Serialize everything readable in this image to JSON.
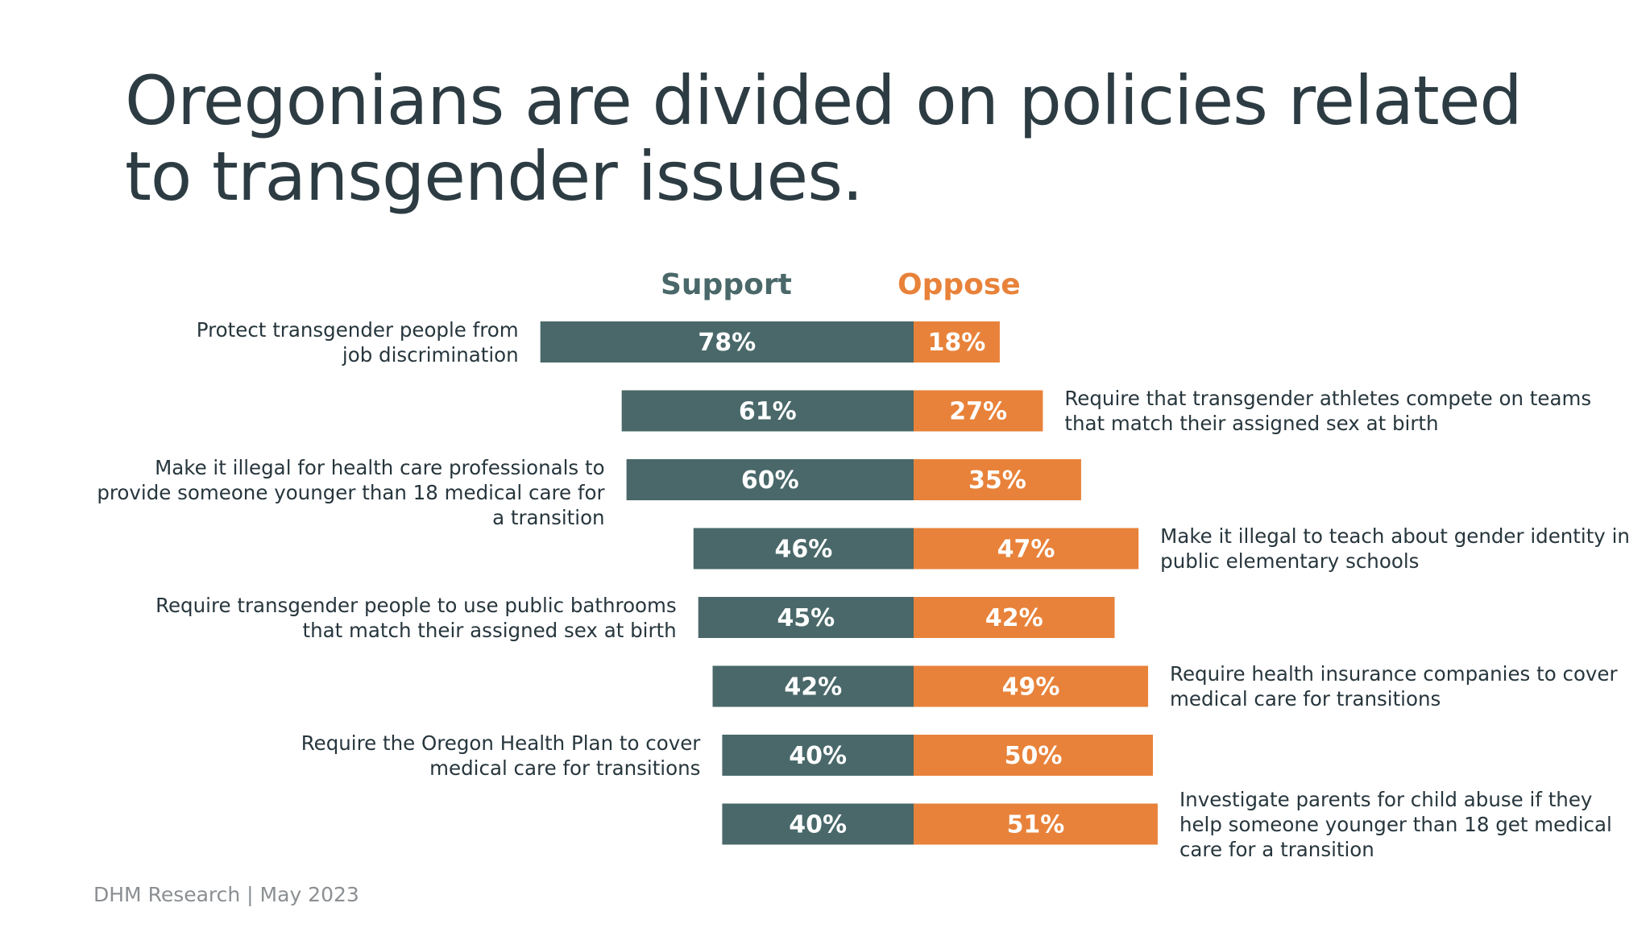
{
  "title": "Oregonians are divided on policies related to transgender issues.",
  "source": "DHM Research | May 2023",
  "colors": {
    "support": "#4a6869",
    "oppose": "#e8823a",
    "label": "#ffffff"
  },
  "chart_data": {
    "type": "bar",
    "orientation": "horizontal-diverging",
    "title": "Oregonians are divided on policies related to transgender issues.",
    "legend": [
      "Support",
      "Oppose"
    ],
    "categories": [
      "Protect transgender people from job discrimination",
      "Require that transgender athletes compete on teams that match their assigned sex at birth",
      "Make it illegal for health care professionals to provide someone younger than 18 medical care for a transition",
      "Make it illegal to teach about gender identity in public elementary schools",
      "Require transgender people to use public bathrooms that match their assigned sex at birth",
      "Require health insurance companies to cover medical care for transitions",
      "Require the Oregon Health Plan to cover medical care for transitions",
      "Investigate parents for child abuse if they help someone younger than 18 get medical care for a transition"
    ],
    "series": [
      {
        "name": "Support",
        "values": [
          78,
          61,
          60,
          46,
          45,
          42,
          40,
          40
        ],
        "labels": [
          "78%",
          "61%",
          "60%",
          "46%",
          "45%",
          "42%",
          "40%",
          "40%"
        ]
      },
      {
        "name": "Oppose",
        "values": [
          18,
          27,
          35,
          47,
          42,
          49,
          50,
          51
        ],
        "labels": [
          "18%",
          "27%",
          "35%",
          "47%",
          "42%",
          "49%",
          "50%",
          "51%"
        ]
      }
    ],
    "unit": "%"
  }
}
